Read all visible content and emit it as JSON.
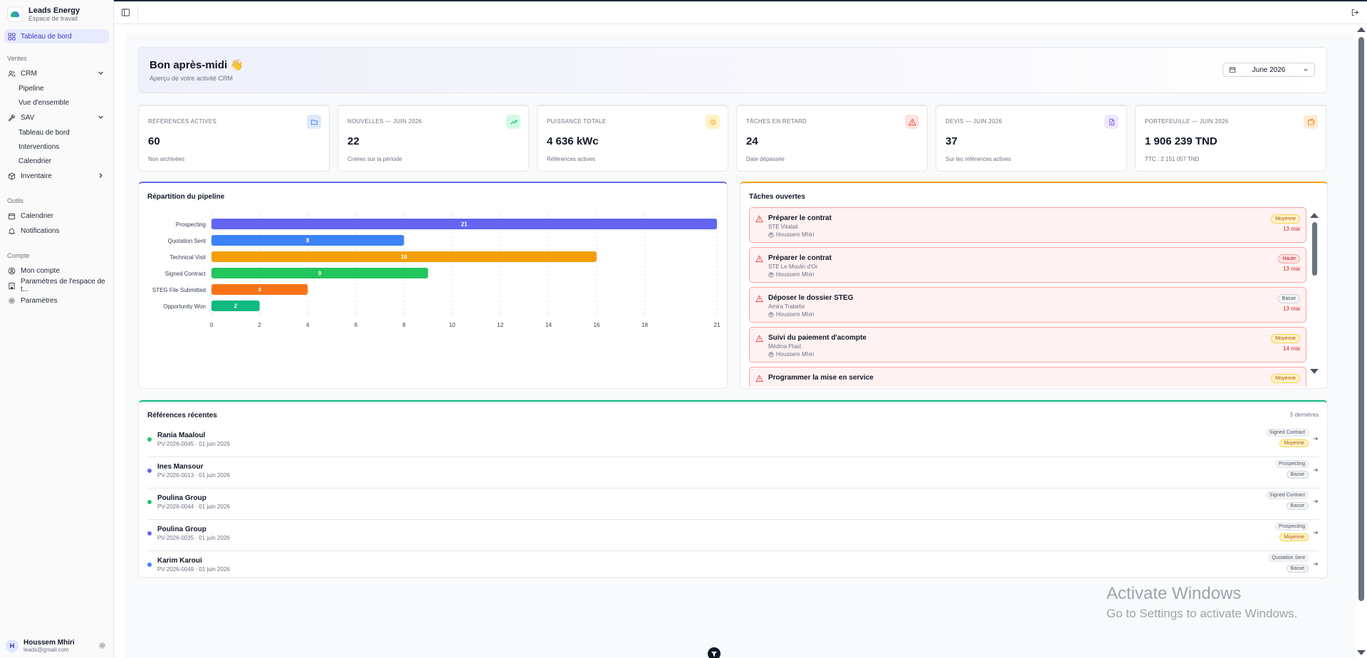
{
  "workspace": {
    "name": "Leads Energy",
    "subtitle": "Espace de travail"
  },
  "sidebar": {
    "dashboard": "Tableau de bord",
    "section_ventes": "Ventes",
    "crm": "CRM",
    "crm_items": [
      "Pipeline",
      "Vue d'ensemble"
    ],
    "sav": "SAV",
    "sav_items": [
      "Tableau de bord",
      "Interventions",
      "Calendrier"
    ],
    "inventaire": "Inventaire",
    "section_outils": "Outils",
    "calendrier": "Calendrier",
    "notifications": "Notifications",
    "section_compte": "Compte",
    "mon_compte": "Mon compte",
    "parametres_espace": "Paramètres de l'espace de t...",
    "parametres": "Paramètres"
  },
  "user": {
    "initial": "H",
    "name": "Houssem Mhiri",
    "email": "leads@gmail.com"
  },
  "greeting": {
    "title": "Bon après-midi 👋",
    "subtitle": "Aperçu de votre activité CRM",
    "month": "June 2026"
  },
  "colors": {
    "accent": "#6366f1",
    "success": "#10b981",
    "warning": "#f59e0b",
    "danger": "#ef4444"
  },
  "kpis": [
    {
      "label": "RÉFÉRENCES ACTIVES",
      "value": "60",
      "note": "Non archivées",
      "color": "#3b82f6",
      "icon": "folder-icon"
    },
    {
      "label": "NOUVELLES — JUIN 2026",
      "value": "22",
      "note": "Créées sur la période",
      "color": "#10b981",
      "icon": "trend-up-icon"
    },
    {
      "label": "PUISSANCE TOTALE",
      "value": "4 636 kWc",
      "note": "Références actives",
      "color": "#f59e0b",
      "icon": "sun-icon"
    },
    {
      "label": "TÂCHES EN RETARD",
      "value": "24",
      "note": "Date dépassée",
      "color": "#ef4444",
      "icon": "alert-icon"
    },
    {
      "label": "DEVIS — JUIN 2026",
      "value": "37",
      "note": "Sur les références actives",
      "color": "#8b5cf6",
      "icon": "document-icon"
    },
    {
      "label": "PORTEFEUILLE — JUIN 2026",
      "value": "1 906 239 TND",
      "note": "TTC : 2 151 057 TND",
      "color": "#f97316",
      "icon": "wallet-icon"
    }
  ],
  "pipeline": {
    "title": "Répartition du pipeline"
  },
  "chart_data": {
    "type": "bar",
    "orientation": "horizontal",
    "categories": [
      "Prospecting",
      "Quotation Sent",
      "Technical Visit",
      "Signed Contract",
      "STEG File Submitted",
      "Opportunity Won"
    ],
    "values": [
      21,
      8,
      16,
      9,
      4,
      2
    ],
    "colors": [
      "#6366f1",
      "#3b82f6",
      "#f59e0b",
      "#22c55e",
      "#f97316",
      "#10b981"
    ],
    "xticks": [
      0,
      2,
      4,
      6,
      8,
      10,
      12,
      14,
      16,
      18,
      21
    ],
    "grid": true,
    "title": "",
    "xlabel": "",
    "ylabel": ""
  },
  "tasks": {
    "title": "Tâches ouvertes",
    "items": [
      {
        "title": "Préparer le contrat",
        "client": "STE Vitalait",
        "owner": "Houssem Mhiri",
        "priority": "Moyenne",
        "priority_class": "prio-moy",
        "date": "13 mai"
      },
      {
        "title": "Préparer le contrat",
        "client": "STE Le Moulin d'Or",
        "owner": "Houssem Mhiri",
        "priority": "Haute",
        "priority_class": "prio-hau",
        "date": "13 mai"
      },
      {
        "title": "Déposer le dossier STEG",
        "client": "Amira Trabelsi",
        "owner": "Houssem Mhiri",
        "priority": "Basse",
        "priority_class": "prio-bas",
        "date": "13 mai"
      },
      {
        "title": "Suivi du paiement d'acompte",
        "client": "Médina Plast",
        "owner": "Houssem Mhiri",
        "priority": "Moyenne",
        "priority_class": "prio-moy",
        "date": "14 mai"
      },
      {
        "title": "Programmer la mise en service",
        "client": "",
        "owner": "",
        "priority": "Moyenne",
        "priority_class": "prio-moy",
        "date": ""
      }
    ]
  },
  "recent": {
    "title": "Références récentes",
    "count": "5 dernières",
    "rows": [
      {
        "name": "Rania Maaloul",
        "meta": "PV-2026-0045 · 01 juin 2026",
        "stage": "Signed Contract",
        "priority": "Moyenne",
        "priority_class": "prio-moy",
        "dot": "#22c55e"
      },
      {
        "name": "Ines Mansour",
        "meta": "PV-2026-0013 · 01 juin 2026",
        "stage": "Prospecting",
        "priority": "Basse",
        "priority_class": "prio-bas",
        "dot": "#6366f1"
      },
      {
        "name": "Poulina Group",
        "meta": "PV-2026-0044 · 01 juin 2026",
        "stage": "Signed Contract",
        "priority": "Basse",
        "priority_class": "prio-bas",
        "dot": "#22c55e"
      },
      {
        "name": "Poulina Group",
        "meta": "PV-2026-0035 · 01 juin 2026",
        "stage": "Prospecting",
        "priority": "Moyenne",
        "priority_class": "prio-moy",
        "dot": "#6366f1"
      },
      {
        "name": "Karim Karoui",
        "meta": "PV-2026-0049 · 01 juin 2026",
        "stage": "Quotation Sent",
        "priority": "Basse",
        "priority_class": "prio-bas",
        "dot": "#3b82f6"
      }
    ]
  },
  "watermark": {
    "line1": "Activate Windows",
    "line2": "Go to Settings to activate Windows."
  }
}
